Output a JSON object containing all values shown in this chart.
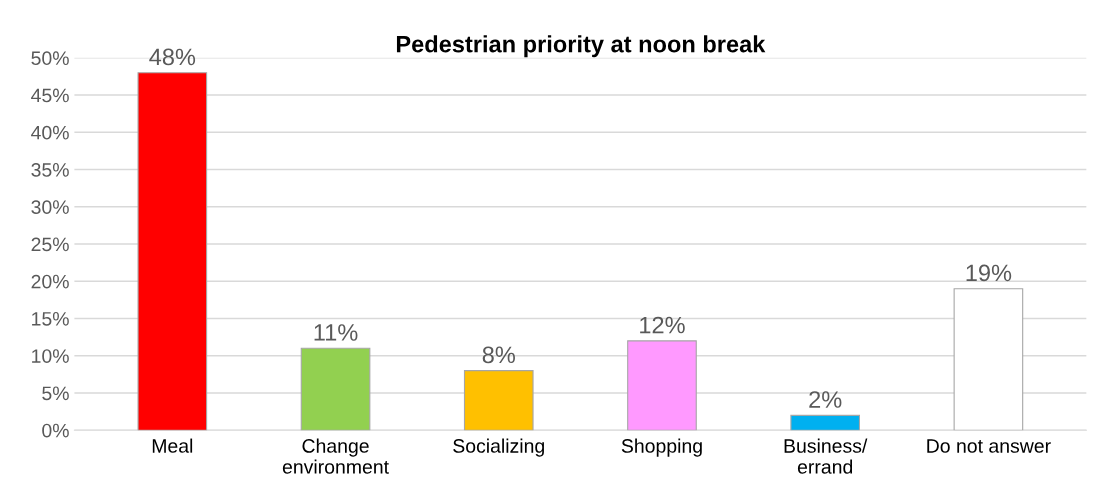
{
  "chart_data": {
    "type": "bar",
    "title": "Pedestrian priority at noon break",
    "categories": [
      "Meal",
      "Change\nenvironment",
      "Socializing",
      "Shopping",
      "Business/\nerrand",
      "Do not answer"
    ],
    "values": [
      48,
      11,
      8,
      12,
      2,
      19
    ],
    "colors": [
      "#ff0000",
      "#92d050",
      "#ffc000",
      "#ff99ff",
      "#00b0f0",
      "#ffffff"
    ],
    "value_labels": [
      "48%",
      "11%",
      "8%",
      "12%",
      "2%",
      "19%"
    ],
    "ylim": [
      0,
      50
    ],
    "yticks": [
      {
        "value": 0,
        "label": "0%"
      },
      {
        "value": 5,
        "label": "5%"
      },
      {
        "value": 10,
        "label": "10%"
      },
      {
        "value": 15,
        "label": "15%"
      },
      {
        "value": 20,
        "label": "20%"
      },
      {
        "value": 25,
        "label": "25%"
      },
      {
        "value": 30,
        "label": "30%"
      },
      {
        "value": 35,
        "label": "35%"
      },
      {
        "value": 40,
        "label": "40%"
      },
      {
        "value": 45,
        "label": "45%"
      },
      {
        "value": 50,
        "label": "50%"
      }
    ],
    "grid": "y"
  }
}
